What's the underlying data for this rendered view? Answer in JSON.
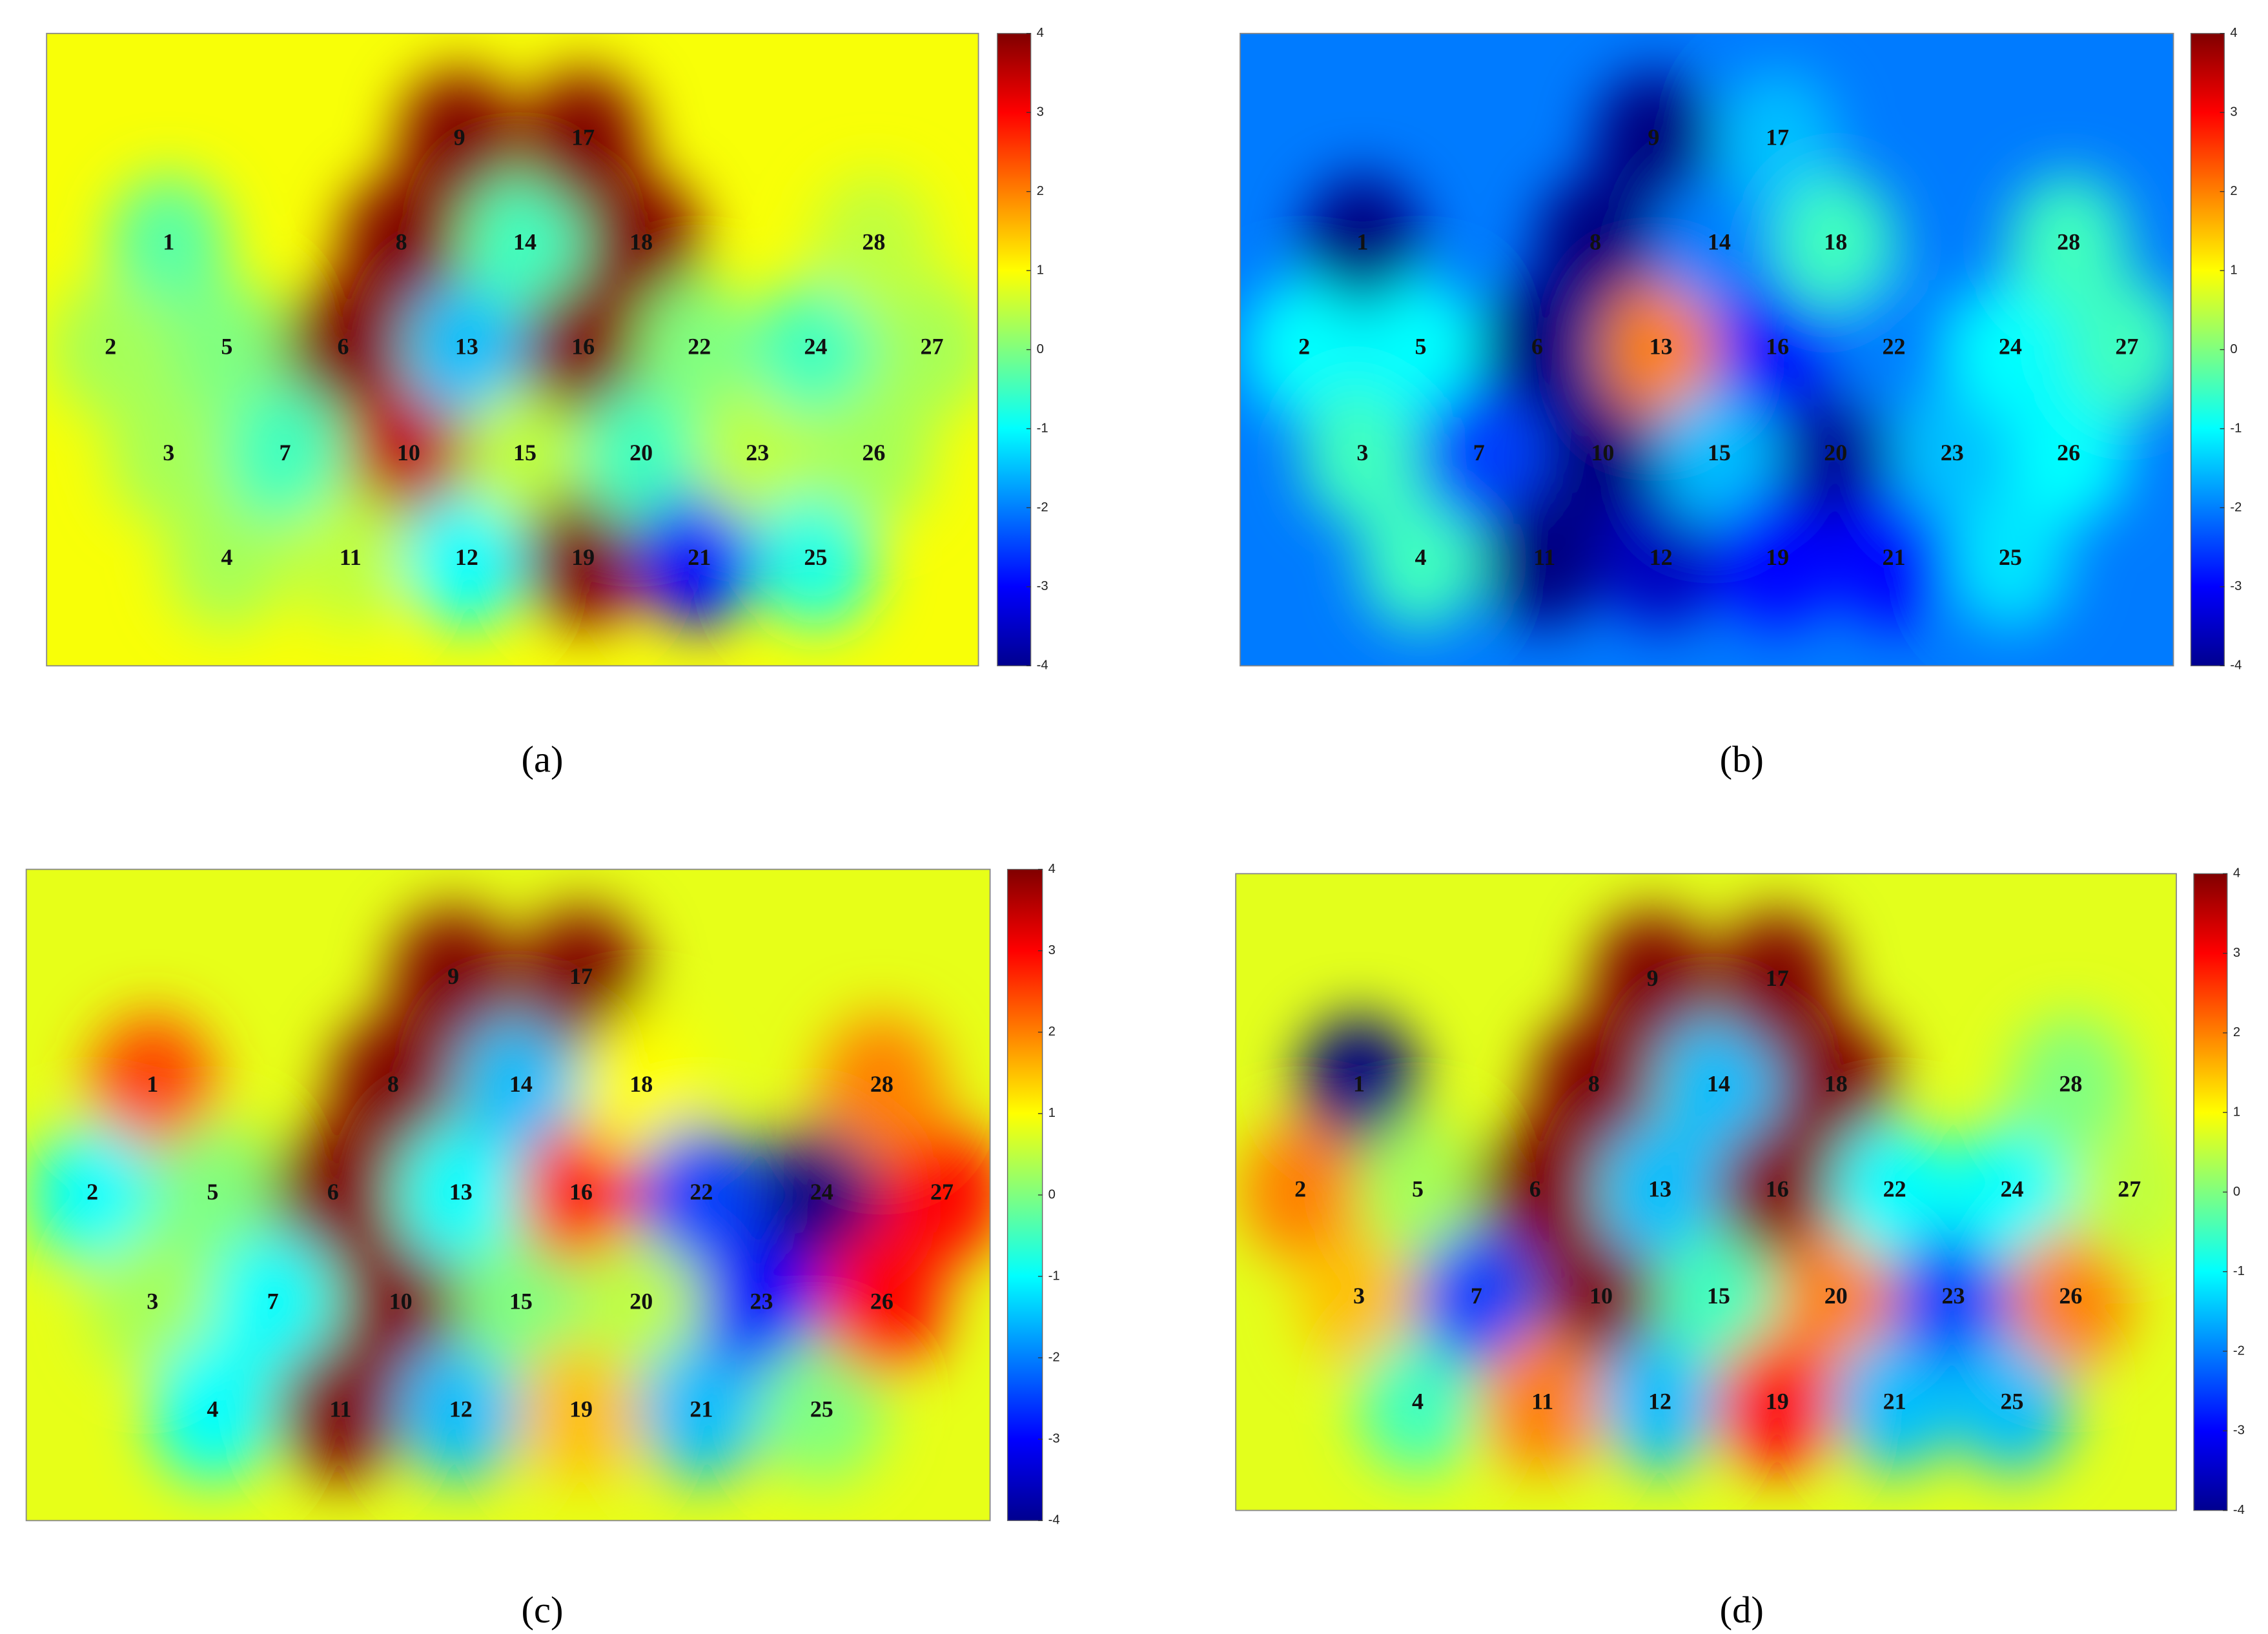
{
  "chart_data": [
    {
      "type": "heatmap",
      "title": "(a)",
      "categories": [
        1,
        2,
        3,
        4,
        5,
        6,
        7,
        8,
        9,
        10,
        11,
        12,
        13,
        14,
        15,
        16,
        17,
        18,
        19,
        20,
        21,
        22,
        23,
        24,
        25,
        26,
        27,
        28
      ],
      "values": [
        -0.3,
        0.3,
        0.3,
        0.3,
        0,
        4,
        -0.5,
        4,
        4,
        3.5,
        0.5,
        -1,
        -1.5,
        -0.5,
        0.5,
        4,
        4,
        4,
        4,
        -0.5,
        -3,
        0,
        0.5,
        -0.5,
        -0.8,
        0.3,
        0.3,
        0.5
      ],
      "ylim": [
        -4,
        4
      ],
      "yticks": [
        -4,
        -3,
        -2,
        -1,
        0,
        1,
        2,
        3,
        4
      ]
    },
    {
      "type": "heatmap",
      "title": "(b)",
      "categories": [
        1,
        2,
        3,
        4,
        5,
        6,
        7,
        8,
        9,
        10,
        11,
        12,
        13,
        14,
        15,
        16,
        17,
        18,
        19,
        20,
        21,
        22,
        23,
        24,
        25,
        26,
        27,
        28
      ],
      "values": [
        -4,
        -1,
        -0.5,
        -0.5,
        -1,
        -4,
        -2.5,
        -4,
        -4,
        -4,
        -4,
        -3.5,
        2,
        -2,
        -1.5,
        -3,
        -1.5,
        -0.5,
        -3,
        -3.8,
        -3,
        -2,
        -1.5,
        -1,
        -1.2,
        -1,
        -0.5,
        -0.5
      ],
      "ylim": [
        -4,
        4
      ],
      "yticks": [
        -4,
        -3,
        -2,
        -1,
        0,
        1,
        2,
        3,
        4
      ]
    },
    {
      "type": "heatmap",
      "title": "(c)",
      "categories": [
        1,
        2,
        3,
        4,
        5,
        6,
        7,
        8,
        9,
        10,
        11,
        12,
        13,
        14,
        15,
        16,
        17,
        18,
        19,
        20,
        21,
        22,
        23,
        24,
        25,
        26,
        27,
        28
      ],
      "values": [
        2.5,
        -1,
        0.3,
        -1,
        0,
        4,
        -1,
        4,
        4,
        4,
        4,
        -1.5,
        -1,
        -1.5,
        0,
        3,
        4,
        1,
        1.5,
        0.5,
        -1.5,
        -2.5,
        -3,
        -4,
        0,
        3,
        3,
        2
      ],
      "ylim": [
        -4,
        4
      ],
      "yticks": [
        -4,
        -3,
        -2,
        -1,
        0,
        1,
        2,
        3,
        4
      ]
    },
    {
      "type": "heatmap",
      "title": "(d)",
      "categories": [
        1,
        2,
        3,
        4,
        5,
        6,
        7,
        8,
        9,
        10,
        11,
        12,
        13,
        14,
        15,
        16,
        17,
        18,
        19,
        20,
        21,
        22,
        23,
        24,
        25,
        26,
        27,
        28
      ],
      "values": [
        -4,
        2,
        1.5,
        -0.5,
        0.3,
        4,
        -2.5,
        4,
        4,
        4,
        2,
        -1.5,
        -1.5,
        -1.5,
        -0.5,
        4,
        4,
        4,
        3,
        2,
        -1.5,
        -1,
        -2.5,
        -1,
        -1.5,
        2,
        0.5,
        0
      ],
      "ylim": [
        -4,
        4
      ],
      "yticks": [
        -4,
        -3,
        -2,
        -1,
        0,
        1,
        2,
        3,
        4
      ]
    }
  ]
}
